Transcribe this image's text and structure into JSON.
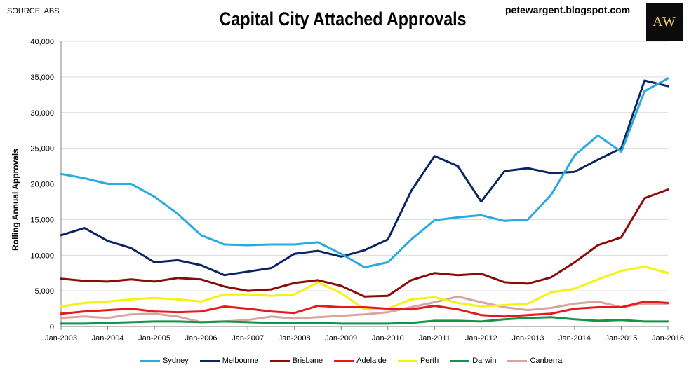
{
  "header": {
    "source": "SOURCE: ABS",
    "title": "Capital City Attached Approvals",
    "blog": "petewargent.blogspot.com",
    "logo_text": "AW"
  },
  "chart_data": {
    "type": "line",
    "title": "Capital City Attached Approvals",
    "ylabel": "Rolling Annual Approvals",
    "xlabel": "",
    "ylim": [
      0,
      40000
    ],
    "yticks": [
      0,
      5000,
      10000,
      15000,
      20000,
      25000,
      30000,
      35000,
      40000
    ],
    "ytick_labels": [
      "0",
      "5,000",
      "10,000",
      "15,000",
      "20,000",
      "25,000",
      "30,000",
      "35,000",
      "40,000"
    ],
    "xlim": [
      "Jan-2003",
      "Jan-2016"
    ],
    "xtick_labels": [
      "Jan-2003",
      "Jan-2004",
      "Jan-2005",
      "Jan-2006",
      "Jan-2007",
      "Jan-2008",
      "Jan-2009",
      "Jan-2010",
      "Jan-2011",
      "Jan-2012",
      "Jan-2013",
      "Jan-2014",
      "Jan-2015",
      "Jan-2016"
    ],
    "grid": "horizontal",
    "legend_position": "bottom",
    "x": [
      "Jan-2003",
      "Jul-2003",
      "Jan-2004",
      "Jul-2004",
      "Jan-2005",
      "Jul-2005",
      "Jan-2006",
      "Jul-2006",
      "Jan-2007",
      "Jul-2007",
      "Jan-2008",
      "Jul-2008",
      "Jan-2009",
      "Jul-2009",
      "Jan-2010",
      "Jul-2010",
      "Jan-2011",
      "Jul-2011",
      "Jan-2012",
      "Jul-2012",
      "Jan-2013",
      "Jul-2013",
      "Jan-2014",
      "Jul-2014",
      "Jan-2015",
      "Jul-2015",
      "Jan-2016"
    ],
    "series": [
      {
        "name": "Sydney",
        "color": "#29aae1",
        "values": [
          21400,
          20800,
          20000,
          20000,
          18200,
          15800,
          12800,
          11500,
          11400,
          11500,
          11500,
          11800,
          10200,
          8300,
          9000,
          12200,
          14900,
          15300,
          15600,
          14800,
          15000,
          18500,
          24000,
          26800,
          24500,
          33000,
          34800
        ]
      },
      {
        "name": "Melbourne",
        "color": "#0c2461",
        "values": [
          12800,
          13800,
          12000,
          11000,
          9000,
          9300,
          8600,
          7200,
          7700,
          8200,
          10200,
          10600,
          9800,
          10700,
          12200,
          19000,
          23900,
          22500,
          17500,
          21800,
          22200,
          21500,
          21700,
          23400,
          25000,
          34500,
          33700
        ]
      },
      {
        "name": "Brisbane",
        "color": "#8b0a0a",
        "values": [
          6700,
          6400,
          6300,
          6600,
          6300,
          6800,
          6600,
          5600,
          5000,
          5200,
          6100,
          6500,
          5700,
          4200,
          4300,
          6500,
          7500,
          7200,
          7400,
          6200,
          6000,
          6900,
          9000,
          11400,
          12500,
          18000,
          19200
        ]
      },
      {
        "name": "Adelaide",
        "color": "#e8191c",
        "values": [
          1800,
          2100,
          2300,
          2500,
          2100,
          2000,
          2100,
          2800,
          2500,
          2100,
          1900,
          2900,
          2700,
          2700,
          2500,
          2400,
          2900,
          2400,
          1600,
          1400,
          1600,
          1800,
          2500,
          2700,
          2700,
          3500,
          3300
        ]
      },
      {
        "name": "Perth",
        "color": "#f5f20f",
        "values": [
          2800,
          3300,
          3500,
          3800,
          4000,
          3800,
          3500,
          4500,
          4500,
          4300,
          4500,
          6200,
          4700,
          2400,
          2500,
          3800,
          4100,
          3300,
          2800,
          3000,
          3200,
          4800,
          5300,
          6600,
          7800,
          8400,
          7500
        ]
      },
      {
        "name": "Darwin",
        "color": "#14944a",
        "values": [
          400,
          400,
          500,
          600,
          700,
          700,
          600,
          700,
          600,
          500,
          500,
          500,
          400,
          400,
          400,
          500,
          800,
          800,
          700,
          1000,
          1200,
          1300,
          1000,
          800,
          900,
          700,
          700
        ]
      },
      {
        "name": "Canberra",
        "color": "#d9a3a0",
        "values": [
          1200,
          1400,
          1200,
          1700,
          1800,
          1400,
          600,
          700,
          900,
          1400,
          1100,
          1300,
          1500,
          1700,
          2000,
          2700,
          3400,
          4200,
          3400,
          2700,
          2300,
          2600,
          3200,
          3500,
          2700,
          3200,
          3200
        ]
      }
    ]
  }
}
